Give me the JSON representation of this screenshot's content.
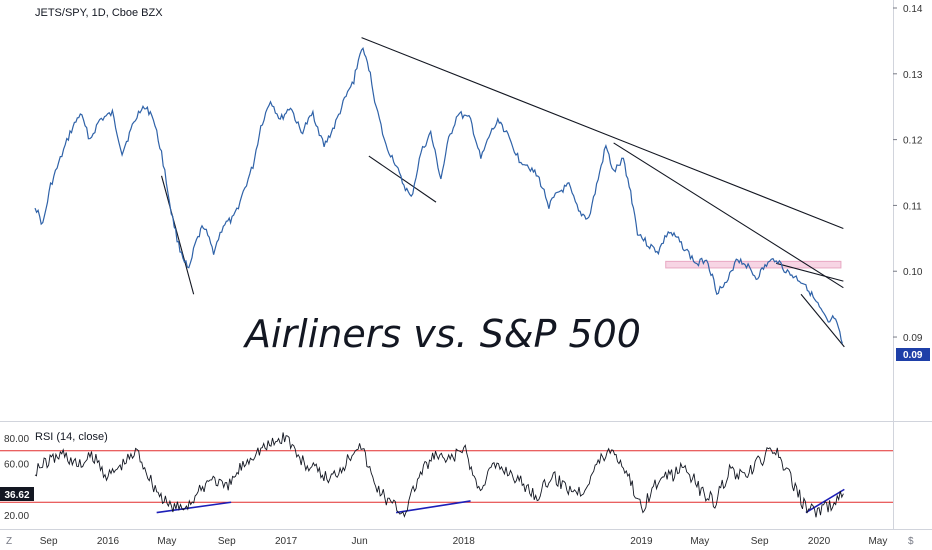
{
  "chart_data": [
    {
      "type": "line",
      "title": "JETS/SPY, 1D, Cboe BZX",
      "annotation": "Airliners vs. S&P 500",
      "ylim": [
        0.078,
        0.14
      ],
      "ytick_values": [
        0.09,
        0.1,
        0.11,
        0.12,
        0.13,
        0.14
      ],
      "ytick_labels": [
        "0.09",
        "0.10",
        "0.11",
        "0.12",
        "0.13",
        "0.14"
      ],
      "last_value_label": "0.09",
      "x_labels": [
        "Sep",
        "2016",
        "May",
        "Sep",
        "2017",
        "Jun",
        "2018",
        "2019",
        "May",
        "Sep",
        "2020",
        "May"
      ],
      "line_color": "#2f62a8",
      "series": [
        {
          "x": [
            "2015-08-04",
            "2015-08-20",
            "2015-09-05",
            "2015-09-25",
            "2015-10-15",
            "2015-11-05",
            "2015-11-25",
            "2015-12-15",
            "2016-01-10",
            "2016-01-30",
            "2016-02-20",
            "2016-03-10",
            "2016-03-31",
            "2016-04-20",
            "2016-05-10",
            "2016-05-25",
            "2016-06-15",
            "2016-06-28",
            "2016-07-15",
            "2016-08-05",
            "2016-08-25",
            "2016-09-15",
            "2016-10-05",
            "2016-10-25",
            "2016-11-10",
            "2016-11-30",
            "2016-12-20",
            "2017-01-10",
            "2017-02-01",
            "2017-02-25",
            "2017-03-20",
            "2017-04-10",
            "2017-05-01",
            "2017-05-20",
            "2017-06-05",
            "2017-06-20",
            "2017-07-05",
            "2017-07-25",
            "2017-08-10",
            "2017-08-25",
            "2017-09-15",
            "2017-10-05",
            "2017-10-25",
            "2017-11-15",
            "2017-12-01",
            "2017-12-20",
            "2018-01-15",
            "2018-02-05",
            "2018-02-25",
            "2018-03-15",
            "2018-04-05",
            "2018-04-25",
            "2018-05-15",
            "2018-06-05",
            "2018-06-25",
            "2018-07-15",
            "2018-08-05",
            "2018-08-25",
            "2018-09-15",
            "2018-10-01",
            "2018-10-20",
            "2018-11-05",
            "2018-11-25",
            "2018-12-10",
            "2018-12-24",
            "2019-01-15",
            "2019-02-05",
            "2019-02-25",
            "2019-03-15",
            "2019-04-05",
            "2019-04-25",
            "2019-05-15",
            "2019-06-05",
            "2019-06-25",
            "2019-07-15",
            "2019-08-05",
            "2019-08-25",
            "2019-09-15",
            "2019-10-05",
            "2019-10-25",
            "2019-11-15",
            "2019-12-05",
            "2019-12-20",
            "2020-01-05",
            "2020-01-20",
            "2020-02-01",
            "2020-02-10",
            "2020-02-18"
          ],
          "y": [
            0.11,
            0.107,
            0.113,
            0.117,
            0.121,
            0.124,
            0.12,
            0.123,
            0.124,
            0.118,
            0.122,
            0.125,
            0.124,
            0.118,
            0.109,
            0.104,
            0.1,
            0.104,
            0.107,
            0.103,
            0.107,
            0.108,
            0.112,
            0.116,
            0.122,
            0.126,
            0.123,
            0.125,
            0.121,
            0.124,
            0.119,
            0.122,
            0.126,
            0.129,
            0.134,
            0.131,
            0.125,
            0.119,
            0.117,
            0.114,
            0.111,
            0.118,
            0.121,
            0.114,
            0.12,
            0.124,
            0.123,
            0.117,
            0.121,
            0.123,
            0.12,
            0.117,
            0.116,
            0.114,
            0.11,
            0.112,
            0.113,
            0.109,
            0.108,
            0.113,
            0.119,
            0.115,
            0.117,
            0.112,
            0.106,
            0.104,
            0.103,
            0.106,
            0.105,
            0.103,
            0.101,
            0.102,
            0.097,
            0.098,
            0.102,
            0.101,
            0.099,
            0.101,
            0.102,
            0.1,
            0.099,
            0.098,
            0.096,
            0.094,
            0.092,
            0.093,
            0.091,
            0.089
          ]
        }
      ],
      "trendlines": [
        {
          "x": [
            "2017-06-05",
            "2020-02-20"
          ],
          "y": [
            0.1355,
            0.1065
          ]
        },
        {
          "x": [
            "2018-11-05",
            "2020-02-20"
          ],
          "y": [
            0.1195,
            0.0975
          ]
        },
        {
          "x": [
            "2019-10-05",
            "2020-02-20"
          ],
          "y": [
            0.1012,
            0.0985
          ]
        },
        {
          "x": [
            "2016-04-20",
            "2016-06-25"
          ],
          "y": [
            0.1145,
            0.0965
          ]
        },
        {
          "x": [
            "2017-06-20",
            "2017-11-05"
          ],
          "y": [
            0.1175,
            0.1105
          ]
        },
        {
          "x": [
            "2019-11-25",
            "2020-02-22"
          ],
          "y": [
            0.0965,
            0.0885
          ]
        }
      ],
      "highlight_zone": {
        "x": [
          "2019-02-20",
          "2020-02-15"
        ],
        "y": [
          0.1005,
          0.1015
        ],
        "color": "#f7d5e4"
      }
    },
    {
      "type": "line",
      "title": "RSI (14, close)",
      "ylim": [
        10,
        90
      ],
      "ytick_values": [
        20,
        40,
        60,
        80
      ],
      "ytick_labels": [
        "20.00",
        "",
        "60.00",
        "80.00"
      ],
      "last_value_label": "36.62",
      "overbought": 70,
      "oversold": 30,
      "level_color": "#e22d2d",
      "line_color": "#131722",
      "series": [
        {
          "x": [
            "2015-08-04",
            "2015-09-01",
            "2015-10-01",
            "2015-11-01",
            "2015-12-01",
            "2016-01-01",
            "2016-02-01",
            "2016-03-01",
            "2016-04-01",
            "2016-05-01",
            "2016-06-01",
            "2016-07-01",
            "2016-08-01",
            "2016-09-01",
            "2016-10-01",
            "2016-11-01",
            "2016-12-01",
            "2017-01-01",
            "2017-02-01",
            "2017-03-01",
            "2017-04-01",
            "2017-05-01",
            "2017-06-01",
            "2017-07-01",
            "2017-08-01",
            "2017-09-01",
            "2017-10-01",
            "2017-11-01",
            "2017-12-01",
            "2018-01-01",
            "2018-02-01",
            "2018-03-01",
            "2018-04-01",
            "2018-05-01",
            "2018-06-01",
            "2018-07-01",
            "2018-08-01",
            "2018-09-01",
            "2018-10-01",
            "2018-11-01",
            "2018-12-01",
            "2019-01-01",
            "2019-02-01",
            "2019-03-01",
            "2019-04-01",
            "2019-05-01",
            "2019-06-01",
            "2019-07-01",
            "2019-08-01",
            "2019-09-01",
            "2019-10-01",
            "2019-11-01",
            "2019-12-01",
            "2020-01-01",
            "2020-02-01",
            "2020-02-20"
          ],
          "y": [
            55,
            62,
            68,
            58,
            66,
            50,
            60,
            70,
            45,
            28,
            25,
            35,
            50,
            40,
            58,
            70,
            75,
            82,
            62,
            55,
            48,
            60,
            78,
            45,
            30,
            22,
            50,
            66,
            62,
            72,
            40,
            58,
            55,
            45,
            35,
            50,
            42,
            38,
            60,
            72,
            55,
            25,
            45,
            50,
            58,
            40,
            30,
            55,
            48,
            62,
            72,
            50,
            28,
            22,
            30,
            36.62
          ]
        }
      ],
      "trendlines": [
        {
          "x": [
            "2016-04-10",
            "2016-09-10"
          ],
          "y": [
            22,
            30
          ]
        },
        {
          "x": [
            "2017-08-15",
            "2018-01-15"
          ],
          "y": [
            22,
            31
          ]
        },
        {
          "x": [
            "2019-12-05",
            "2020-02-22"
          ],
          "y": [
            22,
            40
          ]
        }
      ],
      "trendline_color": "#1d1fb8"
    }
  ],
  "bottom_bar": {
    "left_label": "Z",
    "right_label": "$"
  }
}
